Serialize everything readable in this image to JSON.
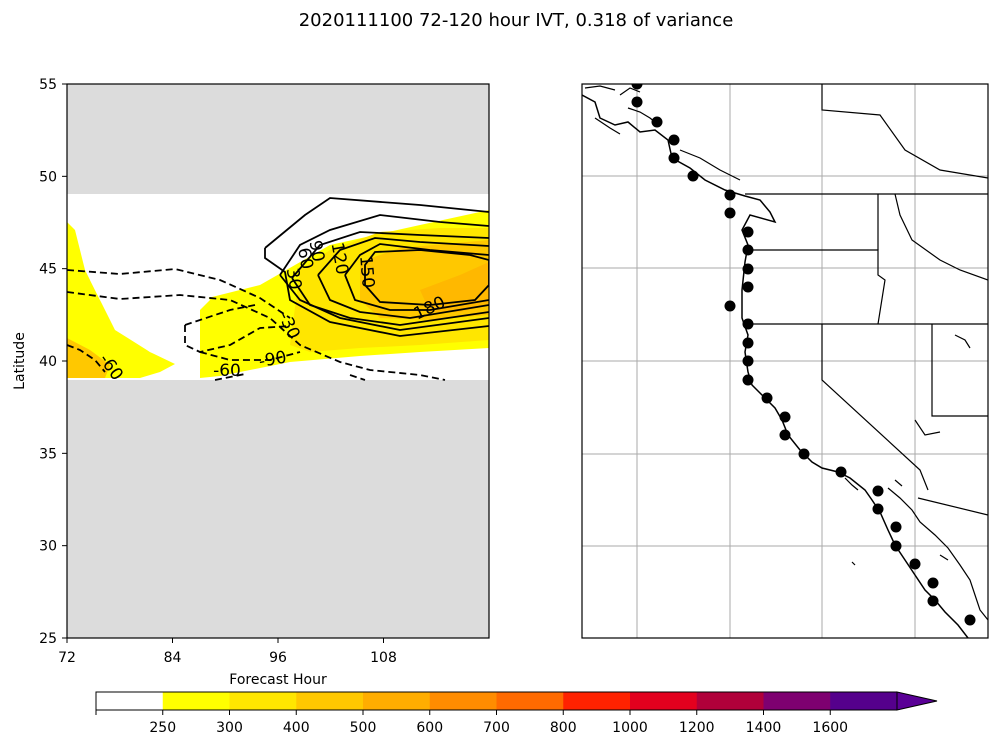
{
  "title": "2020111100 72-120 hour IVT, 0.318 of variance",
  "chart_data": {
    "type": "contour",
    "xlabel": "Forecast Hour",
    "ylabel": "Latitude",
    "xlim": [
      72,
      120
    ],
    "ylim": [
      25,
      55
    ],
    "xticks": [
      "72",
      "84",
      "96",
      "108"
    ],
    "xtick_values": [
      72,
      84,
      96,
      108
    ],
    "yticks": [
      "25",
      "30",
      "35",
      "40",
      "45",
      "50",
      "55"
    ],
    "ytick_values": [
      25,
      30,
      35,
      40,
      45,
      50,
      55
    ],
    "data_band_lat": [
      39,
      49
    ],
    "contour_labels": [
      {
        "text": "30",
        "x": 97.2,
        "y": 44.4,
        "rot": 80
      },
      {
        "text": "60",
        "x": 98.5,
        "y": 45.5,
        "rot": 80
      },
      {
        "text": "90",
        "x": 99.8,
        "y": 45.9,
        "rot": 80
      },
      {
        "text": "120",
        "x": 102.4,
        "y": 45.5,
        "rot": 80
      },
      {
        "text": "150",
        "x": 105.5,
        "y": 44.8,
        "rot": 85
      },
      {
        "text": "180",
        "x": 113.5,
        "y": 42.6,
        "rot": -25
      },
      {
        "text": "-30",
        "x": 96.7,
        "y": 41.8,
        "rot": 65
      },
      {
        "text": "-60",
        "x": 76.5,
        "y": 39.5,
        "rot": 55
      },
      {
        "text": "-60",
        "x": 90.2,
        "y": 39.2,
        "rot": 0
      },
      {
        "text": "-90",
        "x": 95.5,
        "y": 39.8,
        "rot": -10
      }
    ],
    "colorbar": {
      "ticks": [
        "250",
        "300",
        "400",
        "500",
        "600",
        "700",
        "800",
        "1000",
        "1200",
        "1400",
        "1600"
      ],
      "colors": [
        "#ffffff",
        "#ffff00",
        "#ffe600",
        "#ffc800",
        "#ffad00",
        "#ff8c00",
        "#ff6a00",
        "#ff2200",
        "#e3001e",
        "#b0003a",
        "#7e0070",
        "#55008c",
        "#5a0096"
      ]
    },
    "station_markers": [
      [
        -123.9,
        53.5
      ],
      [
        -124.6,
        52.3
      ],
      [
        -123.1,
        51.8
      ],
      [
        -122.9,
        51.0
      ],
      [
        -122.4,
        50.0
      ],
      [
        -121.6,
        49.7
      ],
      [
        -120.9,
        48.6
      ],
      [
        -120.9,
        47.8
      ],
      [
        -120.6,
        47.2
      ],
      [
        -120.6,
        46.6
      ],
      [
        -120.6,
        45.9
      ],
      [
        -120.6,
        45.2
      ],
      [
        -120.9,
        44.1
      ],
      [
        -120.6,
        43.2
      ],
      [
        -120.6,
        42.4
      ],
      [
        -120.6,
        41.6
      ],
      [
        -120.6,
        40.9
      ],
      [
        -119.9,
        40.1
      ],
      [
        -119.1,
        39.6
      ],
      [
        -119.1,
        38.9
      ],
      [
        -118.3,
        38.3
      ],
      [
        -117.2,
        37.9
      ],
      [
        -116.0,
        37.2
      ],
      [
        -115.8,
        36.4
      ],
      [
        -115.0,
        35.7
      ],
      [
        -115.0,
        35.0
      ],
      [
        -114.2,
        34.6
      ],
      [
        -114.0,
        33.9
      ],
      [
        -113.6,
        33.2
      ],
      [
        -113.0,
        32.7
      ]
    ]
  }
}
